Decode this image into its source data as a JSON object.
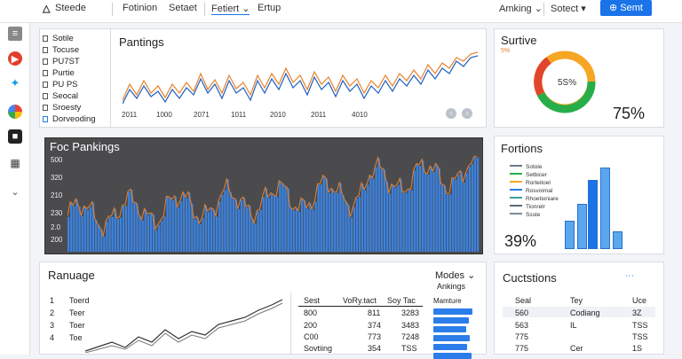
{
  "header": {
    "app_title": "Steede",
    "nav": [
      "Fotinion",
      "Setaet",
      "Fetiert",
      "Ertup"
    ],
    "right_links": [
      "Amking",
      "Sotect"
    ],
    "primary_button": "Semt"
  },
  "top_left": {
    "legend": [
      "Sotile",
      "Tocuse",
      "PU7ST",
      "Purtie",
      "PU PS",
      "Seocal",
      "Sroesty",
      "Dorveoding"
    ],
    "chart_title": "Pantings",
    "x_ticks": [
      "2011",
      "1000",
      "2071",
      "1011",
      "2010",
      "2011",
      "4010"
    ]
  },
  "donut_card": {
    "title": "Surtive",
    "badge": "5%",
    "center_label": "5S%",
    "big_percent": "75%",
    "colors": {
      "orange": "#f6a623",
      "green": "#27ae4a",
      "red": "#e2452d"
    }
  },
  "dark_chart": {
    "title": "Foc Pankings",
    "y_labels": [
      "500",
      "320",
      "210",
      "230",
      "2.0",
      "200"
    ]
  },
  "fortions_card": {
    "title": "Fortions",
    "legend": [
      "Sotole",
      "Setbicer",
      "Rorteitoel",
      "Rosvoimal",
      "Rhoetioniare",
      "Tionrelr",
      "Ssste"
    ],
    "big_percent": "39%",
    "bars": [
      0.35,
      0.55,
      0.85,
      1.0,
      0.22
    ]
  },
  "bottom_left": {
    "title": "Ranuage",
    "rows": [
      {
        "num": "1",
        "label": "Toerd"
      },
      {
        "num": "2",
        "label": "Teer"
      },
      {
        "num": "3",
        "label": "Toer"
      },
      {
        "num": "4",
        "label": "Toe"
      }
    ],
    "table_headers": [
      "Sest",
      "VoRy.tact",
      "Soy Tac"
    ],
    "table_rows": [
      [
        "800",
        "811",
        "3283"
      ],
      [
        "200",
        "374",
        "3483"
      ],
      [
        "C00",
        "773",
        "7248"
      ],
      [
        "Sovtiing",
        "354",
        "TSS"
      ]
    ],
    "dropdown": "Modes",
    "dropdown_sub": "Ankings",
    "bar_header": "Mamture",
    "bar_values": [
      0.92,
      0.84,
      0.78,
      0.86,
      0.8,
      0.9
    ]
  },
  "cucstions": {
    "title": "Cuctstions",
    "headers": [
      "Seal",
      "Tey",
      "Uce"
    ],
    "rows": [
      [
        "560",
        "Codiang",
        "3Z"
      ],
      [
        "563",
        "IL",
        "TSS"
      ],
      [
        "775",
        "",
        "TSS"
      ],
      [
        "775",
        "Cer",
        "1S"
      ]
    ]
  }
}
